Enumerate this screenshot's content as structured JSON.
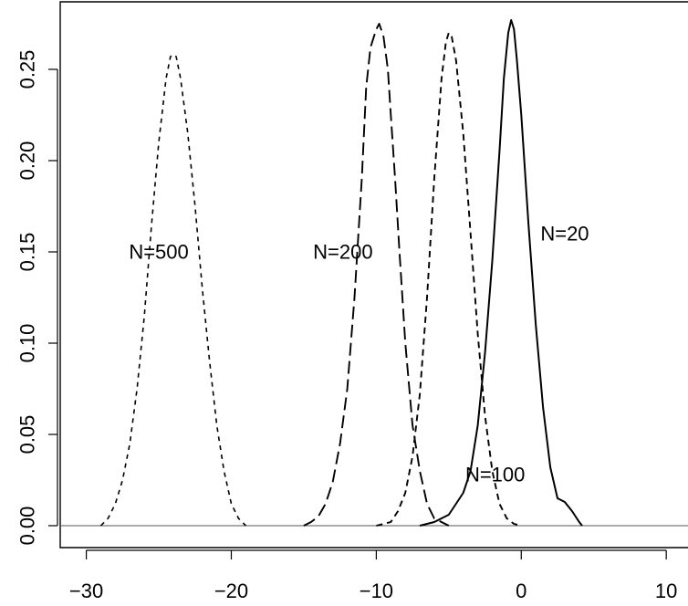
{
  "chart_data": {
    "type": "line",
    "title": "",
    "xlabel": "",
    "ylabel": "",
    "xlim": [
      -31.8,
      11.5
    ],
    "ylim": [
      -0.012,
      0.287
    ],
    "x_ticks": [
      -30,
      -20,
      -10,
      0,
      10
    ],
    "x_tick_labels": [
      "−30",
      "−20",
      "−10",
      "0",
      "10"
    ],
    "y_ticks": [
      0.0,
      0.05,
      0.1,
      0.15,
      0.2,
      0.25
    ],
    "y_tick_labels": [
      "0.00",
      "0.05",
      "0.10",
      "0.15",
      "0.20",
      "0.25"
    ],
    "reference_line_y": 0,
    "grid": false,
    "legend": "none",
    "series": [
      {
        "name": "N=20",
        "dash": "solid",
        "label_x": 3.0,
        "label_y": 0.16,
        "points": [
          [
            -7.0,
            0.0
          ],
          [
            -6.0,
            0.002
          ],
          [
            -5.0,
            0.006
          ],
          [
            -4.5,
            0.012
          ],
          [
            -4.0,
            0.018
          ],
          [
            -3.5,
            0.03
          ],
          [
            -3.0,
            0.055
          ],
          [
            -2.5,
            0.095
          ],
          [
            -2.0,
            0.145
          ],
          [
            -1.5,
            0.205
          ],
          [
            -1.2,
            0.245
          ],
          [
            -0.9,
            0.27
          ],
          [
            -0.7,
            0.277
          ],
          [
            -0.5,
            0.272
          ],
          [
            -0.3,
            0.255
          ],
          [
            0.0,
            0.225
          ],
          [
            0.5,
            0.165
          ],
          [
            1.0,
            0.11
          ],
          [
            1.5,
            0.065
          ],
          [
            2.0,
            0.032
          ],
          [
            2.5,
            0.015
          ],
          [
            3.0,
            0.013
          ],
          [
            3.5,
            0.008
          ],
          [
            4.0,
            0.002
          ],
          [
            4.2,
            0.0
          ]
        ]
      },
      {
        "name": "N=100",
        "dash": "short",
        "label_x": -1.8,
        "label_y": 0.028,
        "points": [
          [
            -10.0,
            0.0
          ],
          [
            -9.0,
            0.002
          ],
          [
            -8.5,
            0.008
          ],
          [
            -8.0,
            0.018
          ],
          [
            -7.5,
            0.038
          ],
          [
            -7.0,
            0.072
          ],
          [
            -6.5,
            0.125
          ],
          [
            -6.0,
            0.19
          ],
          [
            -5.5,
            0.245
          ],
          [
            -5.2,
            0.265
          ],
          [
            -5.0,
            0.27
          ],
          [
            -4.8,
            0.268
          ],
          [
            -4.5,
            0.255
          ],
          [
            -4.0,
            0.215
          ],
          [
            -3.5,
            0.16
          ],
          [
            -3.0,
            0.105
          ],
          [
            -2.5,
            0.06
          ],
          [
            -2.0,
            0.03
          ],
          [
            -1.5,
            0.012
          ],
          [
            -1.0,
            0.004
          ],
          [
            -0.5,
            0.001
          ],
          [
            0.0,
            0.0
          ]
        ]
      },
      {
        "name": "N=200",
        "dash": "long",
        "label_x": -12.3,
        "label_y": 0.15,
        "points": [
          [
            -15.0,
            0.0
          ],
          [
            -14.5,
            0.002
          ],
          [
            -14.0,
            0.005
          ],
          [
            -13.5,
            0.012
          ],
          [
            -13.0,
            0.024
          ],
          [
            -12.5,
            0.045
          ],
          [
            -12.0,
            0.075
          ],
          [
            -11.5,
            0.125
          ],
          [
            -11.0,
            0.19
          ],
          [
            -10.7,
            0.24
          ],
          [
            -10.4,
            0.262
          ],
          [
            -10.0,
            0.272
          ],
          [
            -9.8,
            0.275
          ],
          [
            -9.5,
            0.268
          ],
          [
            -9.2,
            0.25
          ],
          [
            -9.0,
            0.225
          ],
          [
            -8.7,
            0.19
          ],
          [
            -8.4,
            0.15
          ],
          [
            -8.0,
            0.1
          ],
          [
            -7.5,
            0.055
          ],
          [
            -7.0,
            0.03
          ],
          [
            -6.5,
            0.012
          ],
          [
            -6.0,
            0.004
          ],
          [
            -5.0,
            0.0
          ]
        ]
      },
      {
        "name": "N=500",
        "dash": "dotted",
        "label_x": -25.0,
        "label_y": 0.15,
        "points": [
          [
            -29.0,
            0.0
          ],
          [
            -28.5,
            0.004
          ],
          [
            -28.0,
            0.012
          ],
          [
            -27.5,
            0.025
          ],
          [
            -27.0,
            0.045
          ],
          [
            -26.5,
            0.075
          ],
          [
            -26.0,
            0.115
          ],
          [
            -25.5,
            0.165
          ],
          [
            -25.0,
            0.21
          ],
          [
            -24.5,
            0.245
          ],
          [
            -24.2,
            0.257
          ],
          [
            -24.0,
            0.258
          ],
          [
            -23.8,
            0.257
          ],
          [
            -23.5,
            0.245
          ],
          [
            -23.0,
            0.215
          ],
          [
            -22.5,
            0.175
          ],
          [
            -22.0,
            0.13
          ],
          [
            -21.5,
            0.09
          ],
          [
            -21.0,
            0.055
          ],
          [
            -20.5,
            0.03
          ],
          [
            -20.0,
            0.012
          ],
          [
            -19.5,
            0.004
          ],
          [
            -19.0,
            0.0
          ]
        ]
      }
    ]
  }
}
